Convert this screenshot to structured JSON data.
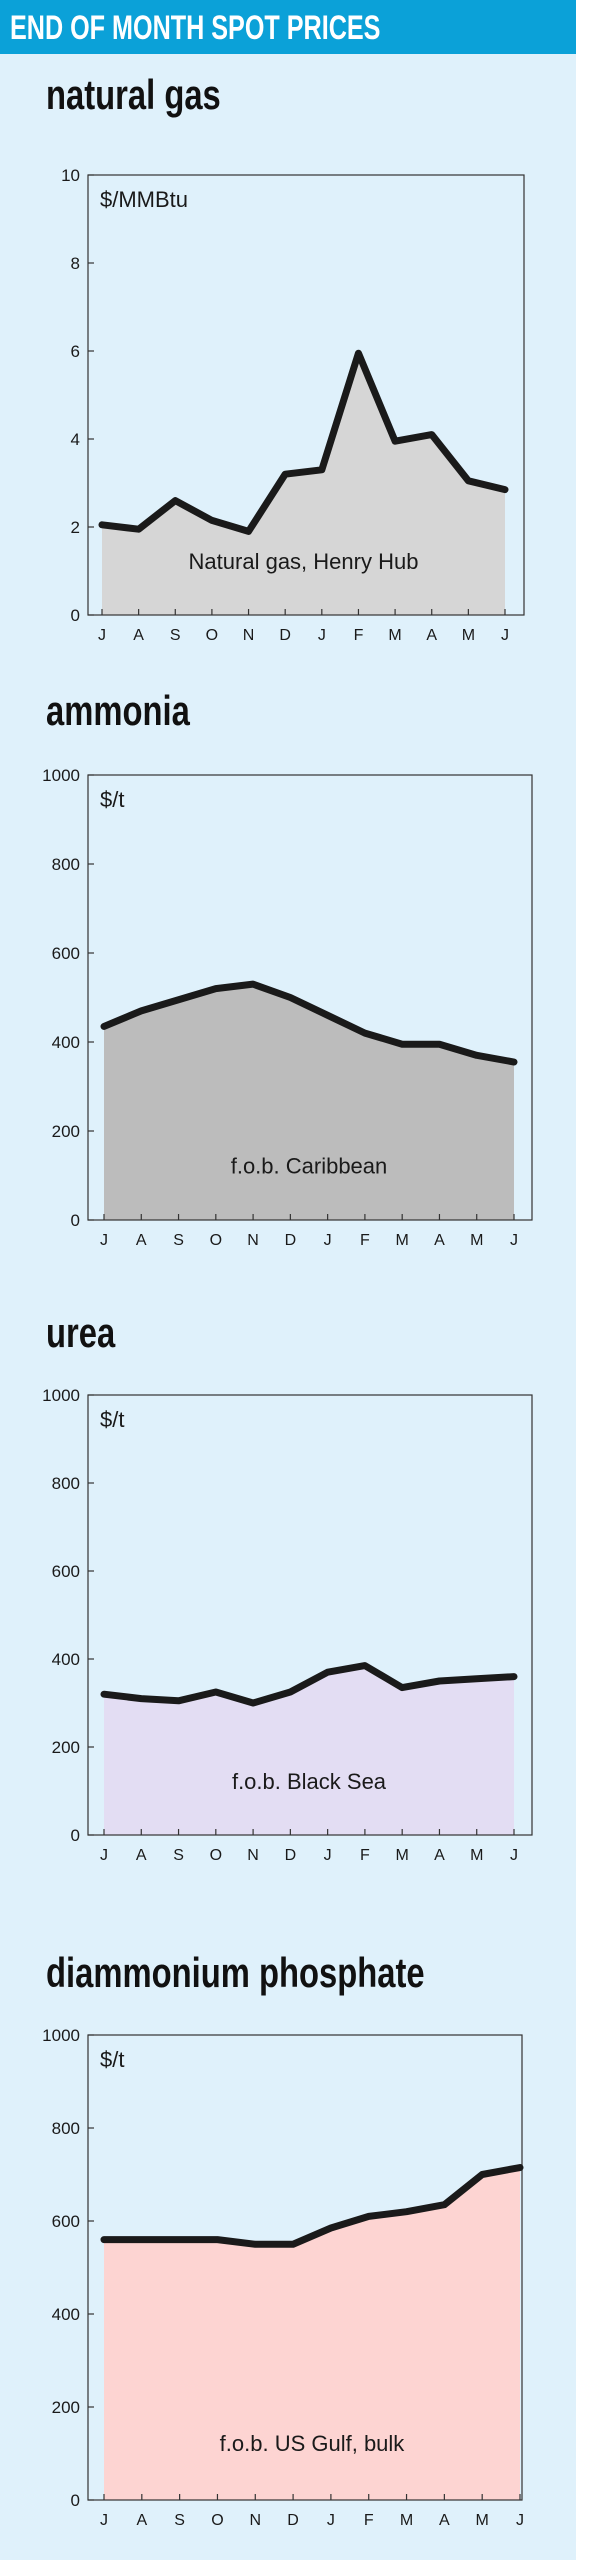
{
  "header": {
    "title": "END OF MONTH SPOT PRICES"
  },
  "chart_data": [
    {
      "type": "area",
      "title": "natural gas",
      "unit_label": "$/MMBtu",
      "series_label": "Natural gas, Henry Hub",
      "categories": [
        "J",
        "A",
        "S",
        "O",
        "N",
        "D",
        "J",
        "F",
        "M",
        "A",
        "M",
        "J"
      ],
      "values": [
        2.05,
        1.95,
        2.6,
        2.15,
        1.9,
        3.2,
        3.3,
        5.95,
        3.95,
        4.1,
        3.05,
        2.85
      ],
      "ylim": [
        0,
        10
      ],
      "yticks": [
        0,
        2,
        4,
        6,
        8,
        10
      ],
      "fill_color": "#d6d6d6"
    },
    {
      "type": "area",
      "title": "ammonia",
      "unit_label": "$/t",
      "series_label": "f.o.b. Caribbean",
      "categories": [
        "J",
        "A",
        "S",
        "O",
        "N",
        "D",
        "J",
        "F",
        "M",
        "A",
        "M",
        "J"
      ],
      "values": [
        435,
        470,
        495,
        520,
        530,
        500,
        460,
        420,
        395,
        395,
        370,
        355
      ],
      "ylim": [
        0,
        1000
      ],
      "yticks": [
        0,
        200,
        400,
        600,
        800,
        1000
      ],
      "fill_color": "#bcbcbc"
    },
    {
      "type": "area",
      "title": "urea",
      "unit_label": "$/t",
      "series_label": "f.o.b. Black Sea",
      "categories": [
        "J",
        "A",
        "S",
        "O",
        "N",
        "D",
        "J",
        "F",
        "M",
        "A",
        "M",
        "J"
      ],
      "values": [
        320,
        310,
        305,
        325,
        300,
        325,
        370,
        385,
        335,
        350,
        355,
        360
      ],
      "ylim": [
        0,
        1000
      ],
      "yticks": [
        0,
        200,
        400,
        600,
        800,
        1000
      ],
      "fill_color": "#e3ddf3"
    },
    {
      "type": "area",
      "title": "diammonium phosphate",
      "unit_label": "$/t",
      "series_label": "f.o.b. US Gulf, bulk",
      "categories": [
        "J",
        "A",
        "S",
        "O",
        "N",
        "D",
        "J",
        "F",
        "M",
        "A",
        "M",
        "J"
      ],
      "values": [
        560,
        560,
        560,
        560,
        550,
        550,
        585,
        610,
        620,
        635,
        700,
        715
      ],
      "ylim": [
        0,
        1000
      ],
      "yticks": [
        0,
        200,
        400,
        600,
        800,
        1000
      ],
      "fill_color": "#fdd4d2"
    }
  ]
}
